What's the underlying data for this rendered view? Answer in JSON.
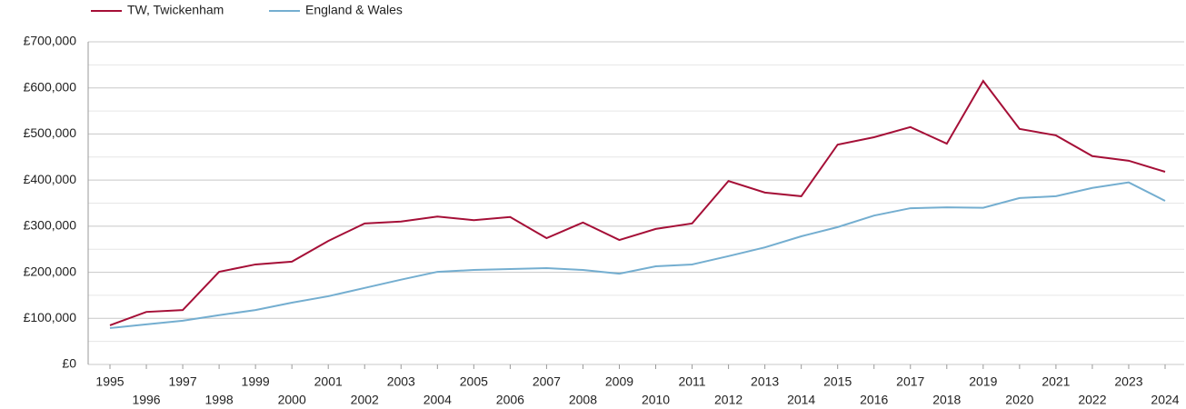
{
  "chart_data": {
    "type": "line",
    "categories": [
      "1995",
      "1996",
      "1997",
      "1998",
      "1999",
      "2000",
      "2001",
      "2002",
      "2003",
      "2004",
      "2005",
      "2006",
      "2007",
      "2008",
      "2009",
      "2010",
      "2011",
      "2012",
      "2013",
      "2014",
      "2015",
      "2016",
      "2017",
      "2018",
      "2019",
      "2020",
      "2021",
      "2022",
      "2023",
      "2024"
    ],
    "series": [
      {
        "name": "TW, Twickenham",
        "color": "#a50f37",
        "values": [
          85000,
          114000,
          118000,
          201000,
          217000,
          223000,
          268000,
          306000,
          310000,
          321000,
          313000,
          320000,
          274000,
          308000,
          270000,
          294000,
          306000,
          398000,
          373000,
          365000,
          477000,
          493000,
          515000,
          479000,
          615000,
          511000,
          497000,
          452000,
          442000,
          418000
        ]
      },
      {
        "name": "England & Wales",
        "color": "#74aed0",
        "values": [
          79000,
          87000,
          95000,
          107000,
          118000,
          134000,
          148000,
          166000,
          184000,
          201000,
          205000,
          207000,
          209000,
          205000,
          197000,
          213000,
          217000,
          235000,
          254000,
          278000,
          298000,
          323000,
          339000,
          341000,
          340000,
          361000,
          365000,
          383000,
          395000,
          355000
        ]
      }
    ],
    "ylim": [
      0,
      700000
    ],
    "yticks": [
      {
        "value": 0,
        "label": "£0"
      },
      {
        "value": 100000,
        "label": "£100,000"
      },
      {
        "value": 200000,
        "label": "£200,000"
      },
      {
        "value": 300000,
        "label": "£300,000"
      },
      {
        "value": 400000,
        "label": "£400,000"
      },
      {
        "value": 500000,
        "label": "£500,000"
      },
      {
        "value": 600000,
        "label": "£600,000"
      },
      {
        "value": 700000,
        "label": "£700,000"
      }
    ],
    "minor_yticks": [
      50000,
      150000,
      250000,
      350000,
      450000,
      550000,
      650000
    ],
    "grid": true,
    "legend": "top-left"
  }
}
